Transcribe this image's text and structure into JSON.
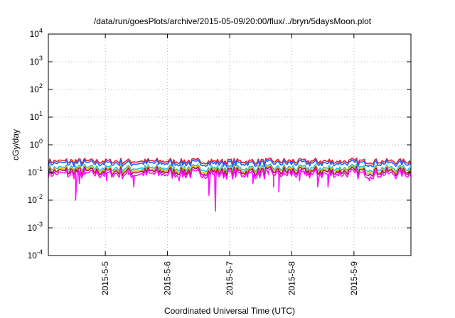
{
  "chart_data": {
    "type": "line",
    "title": "/data/run/goesPlots/archive/2015-05-09/20:00/flux/../bryn/5daysMoon.plot",
    "xlabel": "Coordinated Universal Time (UTC)",
    "ylabel": "cGy/day",
    "yscale": "log",
    "ylim": [
      0.0001,
      10000
    ],
    "xlim": [
      "2015-05-04 02:00",
      "2015-05-09 22:00"
    ],
    "grid": true,
    "y_ticks": [
      {
        "base": "10",
        "exp": "-4",
        "value": 0.0001
      },
      {
        "base": "10",
        "exp": "-3",
        "value": 0.001
      },
      {
        "base": "10",
        "exp": "-2",
        "value": 0.01
      },
      {
        "base": "10",
        "exp": "-1",
        "value": 0.1
      },
      {
        "base": "10",
        "exp": "0",
        "value": 1
      },
      {
        "base": "10",
        "exp": "1",
        "value": 10
      },
      {
        "base": "10",
        "exp": "2",
        "value": 100
      },
      {
        "base": "10",
        "exp": "3",
        "value": 1000
      },
      {
        "base": "10",
        "exp": "4",
        "value": 10000
      }
    ],
    "x_ticks": [
      {
        "label": "2015-5-5",
        "value": "2015-05-05 00:00"
      },
      {
        "label": "2015-5-6",
        "value": "2015-05-06 00:00"
      },
      {
        "label": "2015-5-7",
        "value": "2015-05-07 00:00"
      },
      {
        "label": "2015-5-8",
        "value": "2015-05-08 00:00"
      },
      {
        "label": "2015-5-9",
        "value": "2015-05-09 00:00"
      }
    ],
    "series": [
      {
        "color": "#e8202a",
        "base": 0.25,
        "drops": []
      },
      {
        "color": "#2060ff",
        "base": 0.21,
        "drops": []
      },
      {
        "color": "#20c0d0",
        "base": 0.14,
        "drops": []
      },
      {
        "color": "#e0c000",
        "base": 0.12,
        "drops": []
      },
      {
        "color": "#a01060",
        "base": 0.105,
        "drops": []
      },
      {
        "color": "#ff10ff",
        "base": 0.085,
        "drops": [
          {
            "t": "2015-05-04 12:30",
            "v": 0.01
          },
          {
            "t": "2015-05-04 14:00",
            "v": 0.04
          },
          {
            "t": "2015-05-05 00:30",
            "v": 0.05
          },
          {
            "t": "2015-05-05 11:00",
            "v": 0.03
          },
          {
            "t": "2015-05-06 04:30",
            "v": 0.05
          },
          {
            "t": "2015-05-06 16:00",
            "v": 0.015
          },
          {
            "t": "2015-05-06 18:30",
            "v": 0.004
          },
          {
            "t": "2015-05-07 09:00",
            "v": 0.04
          },
          {
            "t": "2015-05-07 17:00",
            "v": 0.03
          },
          {
            "t": "2015-05-07 19:00",
            "v": 0.02
          },
          {
            "t": "2015-05-08 03:00",
            "v": 0.05
          },
          {
            "t": "2015-05-08 10:00",
            "v": 0.03
          },
          {
            "t": "2015-05-08 14:00",
            "v": 0.03
          },
          {
            "t": "2015-05-09 06:00",
            "v": 0.05
          }
        ]
      }
    ]
  }
}
